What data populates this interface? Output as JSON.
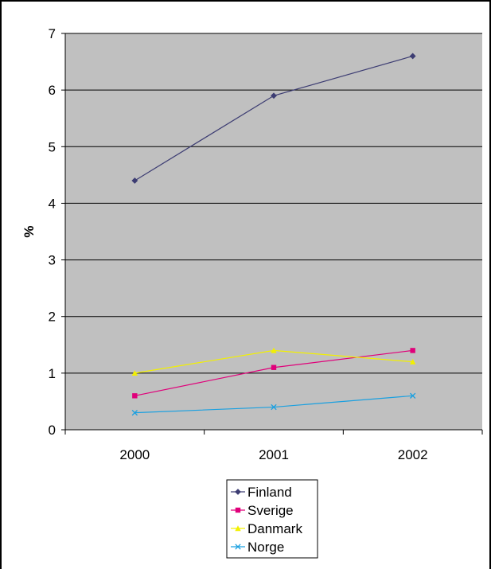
{
  "chart_data": {
    "type": "line",
    "title": "",
    "xlabel": "",
    "ylabel": "%",
    "categories": [
      "2000",
      "2001",
      "2002"
    ],
    "ylim": [
      0,
      7
    ],
    "yticks": [
      0,
      1,
      2,
      3,
      4,
      5,
      6,
      7
    ],
    "grid": true,
    "legend_position": "bottom-center",
    "plot_background": "#c0c0c0",
    "series": [
      {
        "name": "Finland",
        "values": [
          4.4,
          5.9,
          6.6
        ],
        "color": "#3d3d73",
        "marker": "diamond"
      },
      {
        "name": "Sverige",
        "values": [
          0.6,
          1.1,
          1.4
        ],
        "color": "#e0007a",
        "marker": "square"
      },
      {
        "name": "Danmark",
        "values": [
          1.0,
          1.4,
          1.2
        ],
        "color": "#f2f000",
        "marker": "triangle"
      },
      {
        "name": "Norge",
        "values": [
          0.3,
          0.4,
          0.6
        ],
        "color": "#1aa0e0",
        "marker": "x"
      }
    ]
  }
}
